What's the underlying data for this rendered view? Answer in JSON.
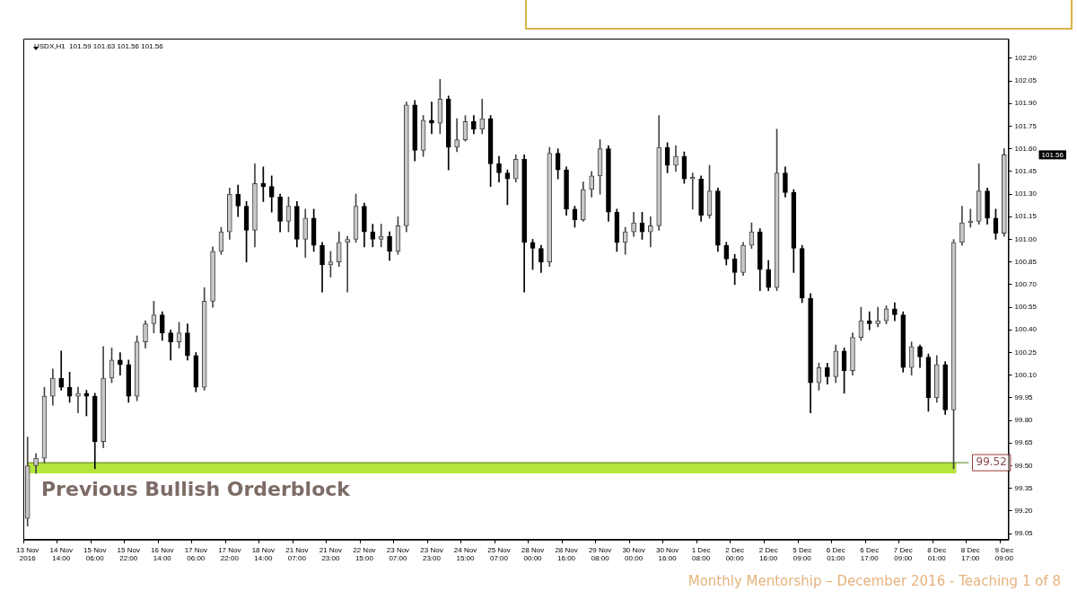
{
  "chart_data": {
    "type": "candlestick",
    "title": "USDX,H1  101.59 101.63 101.56 101.56",
    "colors": [
      "#444444",
      "#444444",
      "#444444",
      "#444444",
      "#000000",
      "#000000",
      "#444444",
      "#000000",
      "#000000",
      "#444444",
      "#444444",
      "#000000",
      "#000000",
      "#444444",
      "#444444",
      "#444444",
      "#000000",
      "#000000",
      "#444444",
      "#000000",
      "#000000",
      "#444444",
      "#444444",
      "#444444",
      "#444444",
      "#000000",
      "#000000",
      "#444444",
      "#000000",
      "#000000",
      "#000000",
      "#444444",
      "#000000",
      "#444444",
      "#000000",
      "#000000",
      "#444444",
      "#444444",
      "#444444",
      "#444444",
      "#000000",
      "#000000",
      "#444444",
      "#000000",
      "#444444",
      "#444444",
      "#000000",
      "#444444",
      "#000000",
      "#444444",
      "#000000",
      "#444444",
      "#444444",
      "#000000",
      "#444444",
      "#000000",
      "#000000",
      "#000000",
      "#444444",
      "#000000",
      "#000000",
      "#000000",
      "#444444",
      "#000000",
      "#000000",
      "#000000",
      "#444444",
      "#444444",
      "#444444",
      "#000000",
      "#000000",
      "#444444",
      "#444444",
      "#000000",
      "#444444",
      "#444444",
      "#000000",
      "#444444",
      "#000000",
      "#444444",
      "#000000",
      "#444444",
      "#000000",
      "#000000",
      "#000000",
      "#444444",
      "#444444",
      "#000000",
      "#000000",
      "#444444",
      "#000000",
      "#000000",
      "#000000",
      "#000000",
      "#444444",
      "#000000",
      "#444444",
      "#000000",
      "#444444",
      "#444444",
      "#000000",
      "#444444",
      "#444444",
      "#000000",
      "#000000",
      "#444444",
      "#000000",
      "#000000",
      "#444444",
      "#000000",
      "#444444",
      "#444444",
      "#444444",
      "#444444",
      "#000000",
      "#000000",
      "#444444"
    ],
    "categories": [
      "13 Nov 2016",
      null,
      null,
      null,
      "14 Nov 14:00",
      null,
      null,
      null,
      "15 Nov 06:00",
      null,
      null,
      null,
      "15 Nov 22:00",
      null,
      null,
      null,
      "16 Nov 14:00",
      null,
      null,
      null,
      "17 Nov 06:00",
      null,
      null,
      null,
      "17 Nov 22:00",
      null,
      null,
      null,
      "18 Nov 14:00",
      null,
      null,
      null,
      "21 Nov 07:00",
      null,
      null,
      null,
      "21 Nov 23:00",
      null,
      null,
      null,
      "22 Nov 15:00",
      null,
      null,
      null,
      "23 Nov 07:00",
      null,
      null,
      null,
      "23 Nov 23:00",
      null,
      null,
      null,
      "24 Nov 15:00",
      null,
      null,
      null,
      "25 Nov 07:00",
      null,
      null,
      null,
      "28 Nov 00:00",
      null,
      null,
      null,
      "28 Nov 16:00",
      null,
      null,
      null,
      "29 Nov 08:00",
      null,
      null,
      null,
      "30 Nov 00:00",
      null,
      null,
      null,
      "30 Nov 16:00",
      null,
      null,
      null,
      "1 Dec 08:00",
      null,
      null,
      null,
      "2 Dec 00:00",
      null,
      null,
      null,
      "2 Dec 16:00",
      null,
      null,
      null,
      "5 Dec 09:00",
      null,
      null,
      null,
      "6 Dec 01:00",
      null,
      null,
      null,
      "6 Dec 17:00",
      null,
      null,
      null,
      "7 Dec 09:00",
      null,
      null,
      null,
      "8 Dec 01:00",
      null,
      null,
      null,
      "8 Dec 17:00",
      null,
      null,
      null,
      "9 Dec 09:00"
    ],
    "ohlc": [
      [
        99.15,
        99.69,
        99.1,
        99.5
      ],
      [
        99.5,
        99.58,
        99.45,
        99.55
      ],
      [
        99.55,
        100.02,
        99.52,
        99.96
      ],
      [
        99.96,
        100.14,
        99.9,
        100.08
      ],
      [
        100.08,
        100.26,
        100.0,
        100.02
      ],
      [
        100.02,
        100.12,
        99.92,
        99.96
      ],
      [
        99.96,
        100.02,
        99.85,
        99.98
      ],
      [
        99.98,
        100.0,
        99.83,
        99.96
      ],
      [
        99.96,
        99.98,
        99.48,
        99.66
      ],
      [
        99.66,
        100.29,
        99.62,
        100.08
      ],
      [
        100.08,
        100.28,
        100.05,
        100.2
      ],
      [
        100.2,
        100.25,
        100.1,
        100.17
      ],
      [
        100.17,
        100.2,
        99.92,
        99.96
      ],
      [
        99.96,
        100.36,
        99.93,
        100.32
      ],
      [
        100.32,
        100.46,
        100.28,
        100.44
      ],
      [
        100.44,
        100.59,
        100.38,
        100.5
      ],
      [
        100.5,
        100.52,
        100.33,
        100.38
      ],
      [
        100.38,
        100.4,
        100.2,
        100.32
      ],
      [
        100.32,
        100.45,
        100.28,
        100.38
      ],
      [
        100.38,
        100.44,
        100.2,
        100.23
      ],
      [
        100.23,
        100.25,
        99.99,
        100.02
      ],
      [
        100.02,
        100.68,
        100.0,
        100.59
      ],
      [
        100.59,
        100.95,
        100.55,
        100.92
      ],
      [
        100.92,
        101.08,
        100.9,
        101.05
      ],
      [
        101.05,
        101.34,
        101.0,
        101.3
      ],
      [
        101.3,
        101.36,
        101.15,
        101.22
      ],
      [
        101.22,
        101.25,
        100.85,
        101.06
      ],
      [
        101.06,
        101.5,
        100.95,
        101.37
      ],
      [
        101.37,
        101.48,
        101.25,
        101.35
      ],
      [
        101.35,
        101.42,
        101.18,
        101.28
      ],
      [
        101.28,
        101.3,
        101.05,
        101.12
      ],
      [
        101.12,
        101.28,
        101.05,
        101.22
      ],
      [
        101.22,
        101.25,
        100.95,
        101.0
      ],
      [
        101.0,
        101.2,
        100.88,
        101.14
      ],
      [
        101.14,
        101.2,
        100.92,
        100.96
      ],
      [
        100.96,
        100.98,
        100.65,
        100.83
      ],
      [
        100.83,
        100.92,
        100.75,
        100.85
      ],
      [
        100.85,
        101.05,
        100.82,
        100.98
      ],
      [
        100.98,
        101.02,
        100.65,
        101.0
      ],
      [
        101.0,
        101.3,
        100.98,
        101.22
      ],
      [
        101.22,
        101.24,
        100.95,
        101.05
      ],
      [
        101.05,
        101.1,
        100.95,
        101.0
      ],
      [
        101.0,
        101.1,
        100.95,
        101.02
      ],
      [
        101.02,
        101.05,
        100.86,
        100.92
      ],
      [
        100.92,
        101.15,
        100.9,
        101.09
      ],
      [
        101.09,
        101.91,
        101.05,
        101.89
      ],
      [
        101.89,
        101.92,
        101.52,
        101.59
      ],
      [
        101.59,
        101.82,
        101.55,
        101.79
      ],
      [
        101.79,
        101.91,
        101.7,
        101.77
      ],
      [
        101.77,
        102.06,
        101.7,
        101.93
      ],
      [
        101.93,
        101.95,
        101.46,
        101.61
      ],
      [
        101.61,
        101.8,
        101.58,
        101.66
      ],
      [
        101.66,
        101.82,
        101.65,
        101.78
      ],
      [
        101.78,
        101.82,
        101.7,
        101.73
      ],
      [
        101.73,
        101.93,
        101.7,
        101.8
      ],
      [
        101.8,
        101.82,
        101.35,
        101.5
      ],
      [
        101.5,
        101.55,
        101.38,
        101.44
      ],
      [
        101.44,
        101.46,
        101.23,
        101.4
      ],
      [
        101.4,
        101.56,
        101.38,
        101.53
      ],
      [
        101.53,
        101.56,
        100.65,
        100.98
      ],
      [
        100.98,
        101.0,
        100.8,
        100.94
      ],
      [
        100.94,
        100.96,
        100.78,
        100.85
      ],
      [
        100.85,
        101.61,
        100.82,
        101.57
      ],
      [
        101.57,
        101.6,
        101.4,
        101.46
      ],
      [
        101.46,
        101.48,
        101.16,
        101.2
      ],
      [
        101.2,
        101.22,
        101.08,
        101.13
      ],
      [
        101.13,
        101.38,
        101.12,
        101.33
      ],
      [
        101.33,
        101.45,
        101.28,
        101.42
      ],
      [
        101.42,
        101.66,
        101.3,
        101.6
      ],
      [
        101.6,
        101.62,
        101.12,
        101.18
      ],
      [
        101.18,
        101.2,
        100.92,
        100.98
      ],
      [
        100.98,
        101.08,
        100.9,
        101.05
      ],
      [
        101.05,
        101.18,
        101.02,
        101.11
      ],
      [
        101.11,
        101.18,
        101.0,
        101.05
      ],
      [
        101.05,
        101.15,
        100.95,
        101.09
      ],
      [
        101.09,
        101.82,
        101.06,
        101.61
      ],
      [
        101.61,
        101.64,
        101.44,
        101.49
      ],
      [
        101.49,
        101.62,
        101.45,
        101.55
      ],
      [
        101.55,
        101.58,
        101.37,
        101.4
      ],
      [
        101.4,
        101.44,
        101.2,
        101.4
      ],
      [
        101.4,
        101.42,
        101.12,
        101.16
      ],
      [
        101.16,
        101.49,
        101.14,
        101.32
      ],
      [
        101.32,
        101.34,
        100.92,
        100.96
      ],
      [
        100.96,
        100.98,
        100.83,
        100.87
      ],
      [
        100.87,
        100.9,
        100.7,
        100.78
      ],
      [
        100.78,
        100.98,
        100.76,
        100.96
      ],
      [
        100.96,
        101.11,
        100.94,
        101.05
      ],
      [
        101.05,
        101.07,
        100.66,
        100.8
      ],
      [
        100.8,
        100.86,
        100.66,
        100.68
      ],
      [
        100.68,
        101.73,
        100.66,
        101.44
      ],
      [
        101.44,
        101.48,
        101.28,
        101.31
      ],
      [
        101.31,
        101.33,
        100.78,
        100.94
      ],
      [
        100.94,
        100.96,
        100.58,
        100.61
      ],
      [
        100.61,
        100.64,
        99.85,
        100.05
      ],
      [
        100.05,
        100.18,
        100.0,
        100.15
      ],
      [
        100.15,
        100.18,
        100.04,
        100.09
      ],
      [
        100.09,
        100.3,
        100.05,
        100.26
      ],
      [
        100.26,
        100.28,
        99.98,
        100.13
      ],
      [
        100.13,
        100.38,
        100.1,
        100.35
      ],
      [
        100.35,
        100.55,
        100.33,
        100.46
      ],
      [
        100.46,
        100.52,
        100.4,
        100.44
      ],
      [
        100.44,
        100.55,
        100.42,
        100.46
      ],
      [
        100.46,
        100.56,
        100.44,
        100.54
      ],
      [
        100.54,
        100.58,
        100.46,
        100.5
      ],
      [
        100.5,
        100.52,
        100.12,
        100.15
      ],
      [
        100.15,
        100.32,
        100.1,
        100.29
      ],
      [
        100.29,
        100.3,
        100.15,
        100.22
      ],
      [
        100.22,
        100.24,
        99.86,
        99.95
      ],
      [
        99.95,
        100.23,
        99.92,
        100.17
      ],
      [
        100.17,
        100.19,
        99.84,
        99.87
      ],
      [
        99.87,
        101.0,
        99.48,
        100.98
      ],
      [
        100.98,
        101.22,
        100.96,
        101.11
      ],
      [
        101.11,
        101.2,
        101.08,
        101.12
      ],
      [
        101.12,
        101.5,
        101.1,
        101.32
      ],
      [
        101.32,
        101.34,
        101.1,
        101.14
      ],
      [
        101.14,
        101.2,
        101.0,
        101.04
      ],
      [
        101.04,
        101.6,
        101.02,
        101.56
      ]
    ],
    "ylim": [
      99.01,
      102.33
    ],
    "yticks": [
      {
        "value": 99.05,
        "label": "99.05"
      },
      {
        "value": 99.2,
        "label": "99.20"
      },
      {
        "value": 99.35,
        "label": "99.35"
      },
      {
        "value": 99.5,
        "label": "99.50"
      },
      {
        "value": 99.65,
        "label": "99.65"
      },
      {
        "value": 99.8,
        "label": "99.80"
      },
      {
        "value": 99.95,
        "label": "99.95"
      },
      {
        "value": 100.1,
        "label": "100.10"
      },
      {
        "value": 100.25,
        "label": "100.25"
      },
      {
        "value": 100.4,
        "label": "100.40"
      },
      {
        "value": 100.55,
        "label": "100.55"
      },
      {
        "value": 100.7,
        "label": "100.70"
      },
      {
        "value": 100.85,
        "label": "100.85"
      },
      {
        "value": 101,
        "label": "101.00"
      },
      {
        "value": 101.15,
        "label": "101.15"
      },
      {
        "value": 101.3,
        "label": "101.30"
      },
      {
        "value": 101.45,
        "label": "101.45"
      },
      {
        "value": 101.6,
        "label": "101.60"
      },
      {
        "value": 101.75,
        "label": "101.75"
      },
      {
        "value": 101.9,
        "label": "101.90"
      },
      {
        "value": 102.05,
        "label": "102.05"
      },
      {
        "value": 102.2,
        "label": "102.20"
      }
    ],
    "bands": [
      {
        "axis": "y",
        "from": 99.45,
        "to": 99.52,
        "label": "Previous Bullish Orderblock",
        "color": "#b5e63c"
      }
    ],
    "ref_lines": [
      {
        "axis": "y",
        "value": 99.52,
        "label": "99.52",
        "color": "#5a7f1a"
      }
    ],
    "annotations": [
      "101.56",
      "Monthly Mentorship – December 2016 - Teaching 1 of 8"
    ]
  }
}
